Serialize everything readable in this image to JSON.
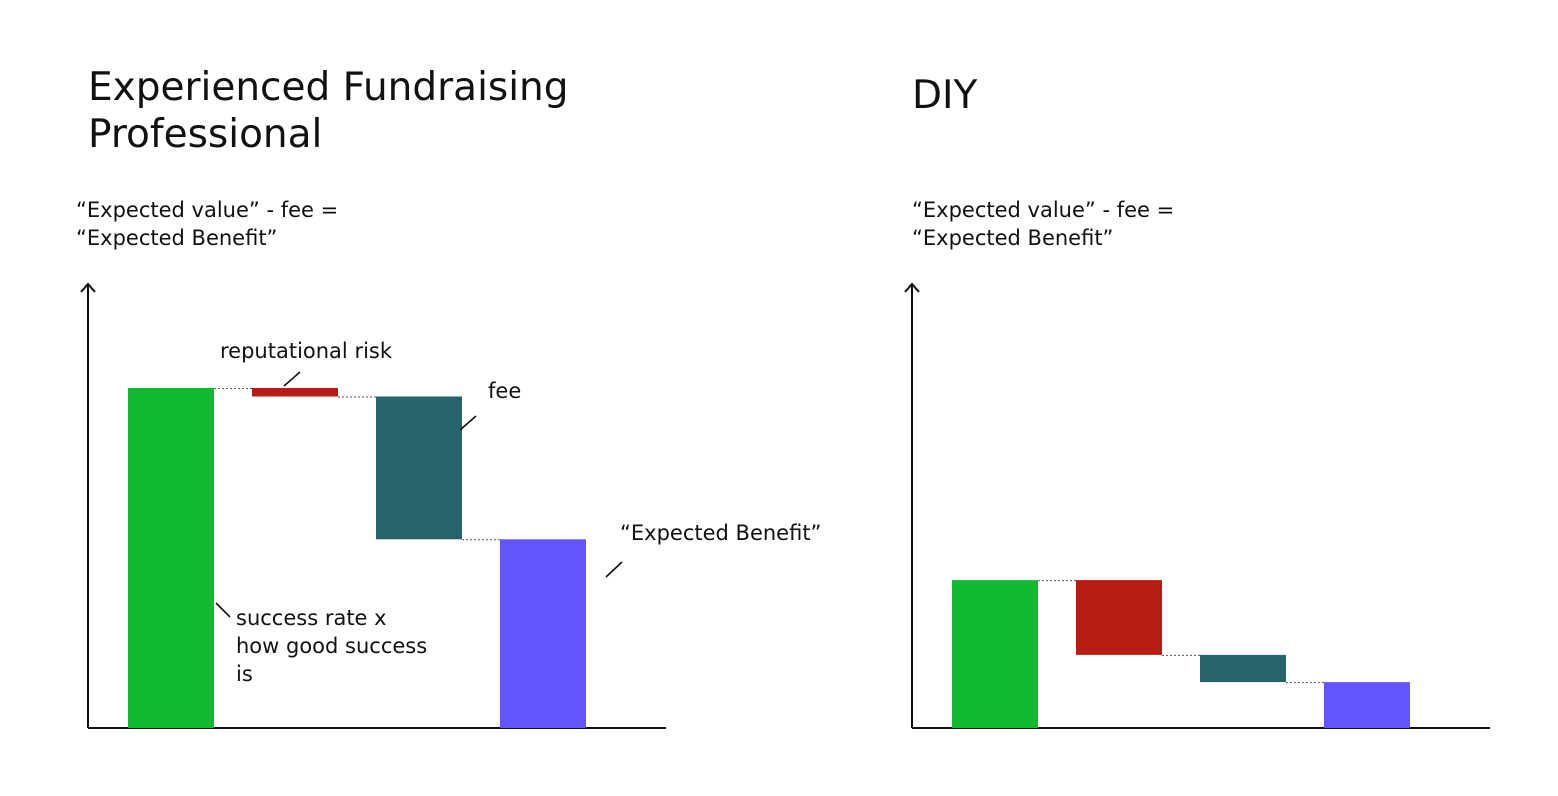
{
  "chart_data": [
    {
      "type": "waterfall",
      "title": "Experienced Fundraising\nProfessional",
      "subtitle": "“Expected value” - fee =\n“Expected Benefit”",
      "steps": [
        {
          "kind": "total",
          "value": 100,
          "color": "#12BA30",
          "label": "success rate x\nhow good success\nis"
        },
        {
          "kind": "decrease",
          "value": 2.5,
          "color": "#B71C14",
          "label": "reputational risk"
        },
        {
          "kind": "decrease",
          "value": 42,
          "color": "#27636B",
          "label": "fee"
        },
        {
          "kind": "total",
          "value": 55.5,
          "color": "#6356FF",
          "label": "“Expected Benefit”"
        }
      ],
      "ylim": [
        0,
        130
      ]
    },
    {
      "type": "waterfall",
      "title": "DIY",
      "subtitle": "“Expected value” - fee =\n“Expected Benefit”",
      "steps": [
        {
          "kind": "total",
          "value": 43.5,
          "color": "#12BA30"
        },
        {
          "kind": "decrease",
          "value": 22,
          "color": "#B71C14"
        },
        {
          "kind": "decrease",
          "value": 8,
          "color": "#27636B"
        },
        {
          "kind": "total",
          "value": 13.5,
          "color": "#6356FF"
        }
      ],
      "ylim": [
        0,
        130
      ]
    }
  ]
}
